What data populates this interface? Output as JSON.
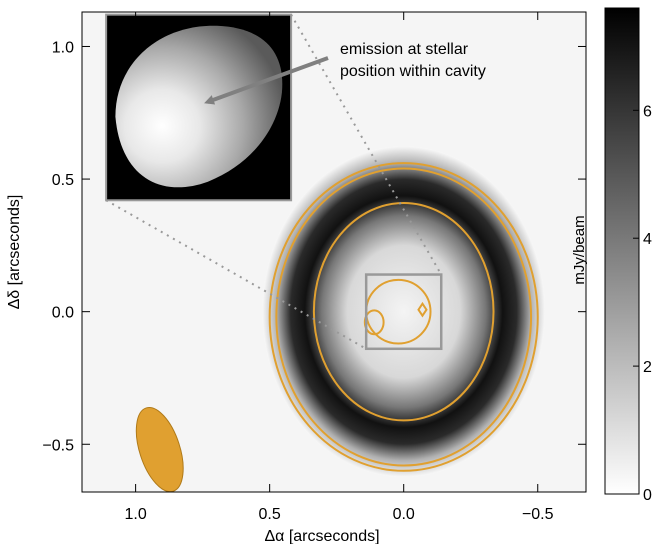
{
  "chart_data": {
    "type": "heatmap",
    "title": "",
    "xlabel": "Δα  [arcseconds]",
    "ylabel": "Δδ  [arcseconds]",
    "xlim": [
      1.2,
      -0.68
    ],
    "ylim": [
      -0.68,
      1.13
    ],
    "x_direction": "reversed",
    "x_ticks": [
      1.0,
      0.5,
      0.0,
      -0.5
    ],
    "x_tick_labels": [
      "1.0",
      "0.5",
      "0.0",
      "−0.5"
    ],
    "y_ticks": [
      -0.5,
      0.0,
      0.5,
      1.0
    ],
    "y_tick_labels": [
      "−0.5",
      "0.0",
      "0.5",
      "1.0"
    ],
    "colormap": "gray_reversed",
    "colorbar": {
      "label": "mJy/beam",
      "range": [
        0,
        7.6
      ],
      "ticks": [
        0,
        2,
        4,
        6
      ],
      "tick_labels": [
        "0",
        "2",
        "4",
        "6"
      ]
    },
    "ring": {
      "center": [
        0.0,
        0.0
      ],
      "radius_x": 0.34,
      "radius_y": 0.43,
      "peak": 7.5
    },
    "central_emission": {
      "center": [
        0.05,
        -0.02
      ],
      "peak": 0.6
    },
    "contour_color": "#E0A030",
    "contours": [
      {
        "level": "outer",
        "rx": 0.5,
        "ry": 0.58,
        "cx": 0.0,
        "cy": -0.02
      },
      {
        "level": "second",
        "rx": 0.475,
        "ry": 0.56,
        "cx": 0.0,
        "cy": -0.02
      },
      {
        "level": "third",
        "rx": 0.335,
        "ry": 0.41,
        "cx": 0.0,
        "cy": 0.0
      },
      {
        "level": "fourth",
        "rx": 0.12,
        "ry": 0.12,
        "cx": 0.02,
        "cy": 0.0
      }
    ],
    "beam": {
      "center": [
        0.91,
        -0.52
      ],
      "major": 0.165,
      "minor": 0.075,
      "color": "#E0A030"
    },
    "zoom_box": {
      "x": [
        0.14,
        -0.14
      ],
      "y": [
        -0.14,
        0.14
      ],
      "color": "#999999"
    },
    "inset_data_extent": {
      "x": [
        1.11,
        0.42
      ],
      "y": [
        0.42,
        1.12
      ]
    },
    "annotation": {
      "text_line_1": "emission at stellar",
      "text_line_2": "position within cavity",
      "arrow_color": "#808080"
    }
  }
}
